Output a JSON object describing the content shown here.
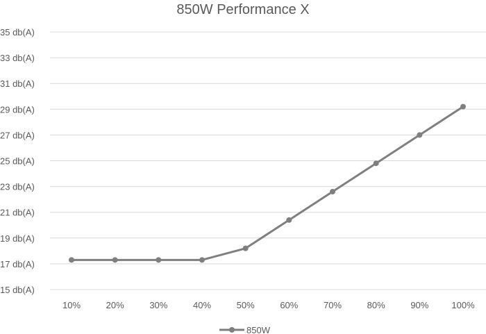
{
  "chart_data": {
    "type": "line",
    "title": "850W Performance X",
    "xlabel": "",
    "ylabel": "",
    "categories": [
      "10%",
      "20%",
      "30%",
      "40%",
      "50%",
      "60%",
      "70%",
      "80%",
      "90%",
      "100%"
    ],
    "y_ticks": [
      15,
      17,
      19,
      21,
      23,
      25,
      27,
      29,
      31,
      33,
      35
    ],
    "y_tick_suffix": " db(A)",
    "ylim": [
      15,
      35
    ],
    "grid": true,
    "legend_position": "bottom",
    "series": [
      {
        "name": "850W",
        "color": "#7f7f7f",
        "values": [
          17.3,
          17.3,
          17.3,
          17.3,
          18.2,
          20.4,
          22.6,
          24.8,
          27.0,
          29.2
        ]
      }
    ]
  }
}
